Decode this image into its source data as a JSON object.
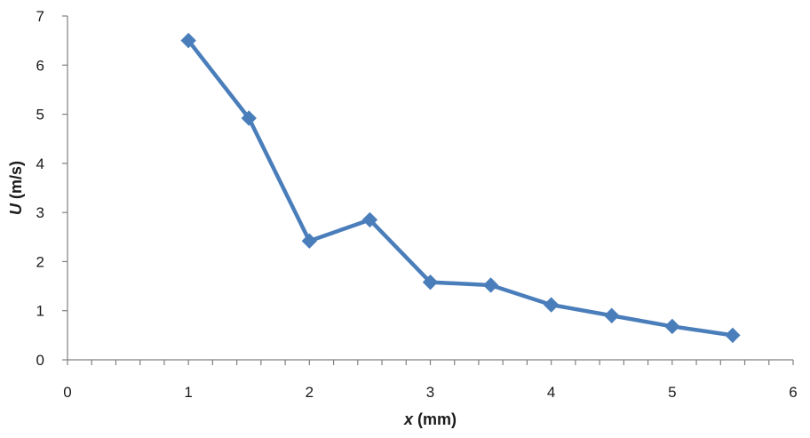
{
  "chart_data": {
    "type": "line",
    "title": "",
    "xlabel_var": "x",
    "xlabel_unit": " (mm)",
    "ylabel_var": "U",
    "ylabel_unit": " (m/s)",
    "xlim": [
      0,
      6
    ],
    "ylim": [
      0,
      7
    ],
    "x_ticks": [
      0,
      1,
      2,
      3,
      4,
      5,
      6
    ],
    "y_ticks": [
      0,
      1,
      2,
      3,
      4,
      5,
      6,
      7
    ],
    "x_minor_step": 0.2,
    "grid": false,
    "series": [
      {
        "color": "#4a7ebb",
        "marker": "diamond",
        "x": [
          1.0,
          1.5,
          2.0,
          2.5,
          3.0,
          3.5,
          4.0,
          4.5,
          5.0,
          5.5
        ],
        "y": [
          6.5,
          4.92,
          2.42,
          2.85,
          1.58,
          1.52,
          1.12,
          0.9,
          0.68,
          0.5
        ]
      }
    ]
  }
}
